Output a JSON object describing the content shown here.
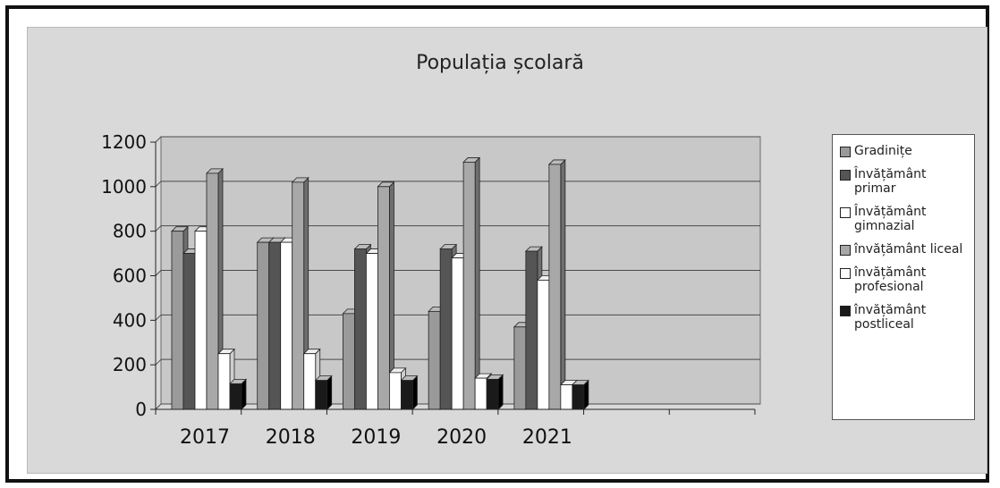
{
  "chart_data": {
    "type": "bar",
    "title": "Populația școlară",
    "categories": [
      "2017",
      "2018",
      "2019",
      "2020",
      "2021"
    ],
    "yticks": [
      "0",
      "200",
      "400",
      "600",
      "800",
      "1000",
      "1200"
    ],
    "ylim": [
      0,
      1200
    ],
    "grid": true,
    "legend_position": "right",
    "series": [
      {
        "name": "Gradinițe",
        "color": "#9a9a9a",
        "values": [
          800,
          750,
          430,
          440,
          370
        ]
      },
      {
        "name": "Învățământ primar",
        "color": "#555555",
        "values": [
          700,
          750,
          720,
          720,
          710
        ]
      },
      {
        "name": "Învățământ gimnazial",
        "color": "#ffffff",
        "values": [
          800,
          750,
          700,
          680,
          580
        ]
      },
      {
        "name": "învățământ liceal",
        "color": "#a8a8a8",
        "values": [
          1060,
          1020,
          1000,
          1110,
          1100
        ]
      },
      {
        "name": "învățământ profesional",
        "color": "#ffffff",
        "values": [
          250,
          250,
          165,
          140,
          110
        ]
      },
      {
        "name": "învățământ postliceal",
        "color": "#1a1a1a",
        "values": [
          115,
          130,
          130,
          135,
          110
        ]
      }
    ]
  }
}
